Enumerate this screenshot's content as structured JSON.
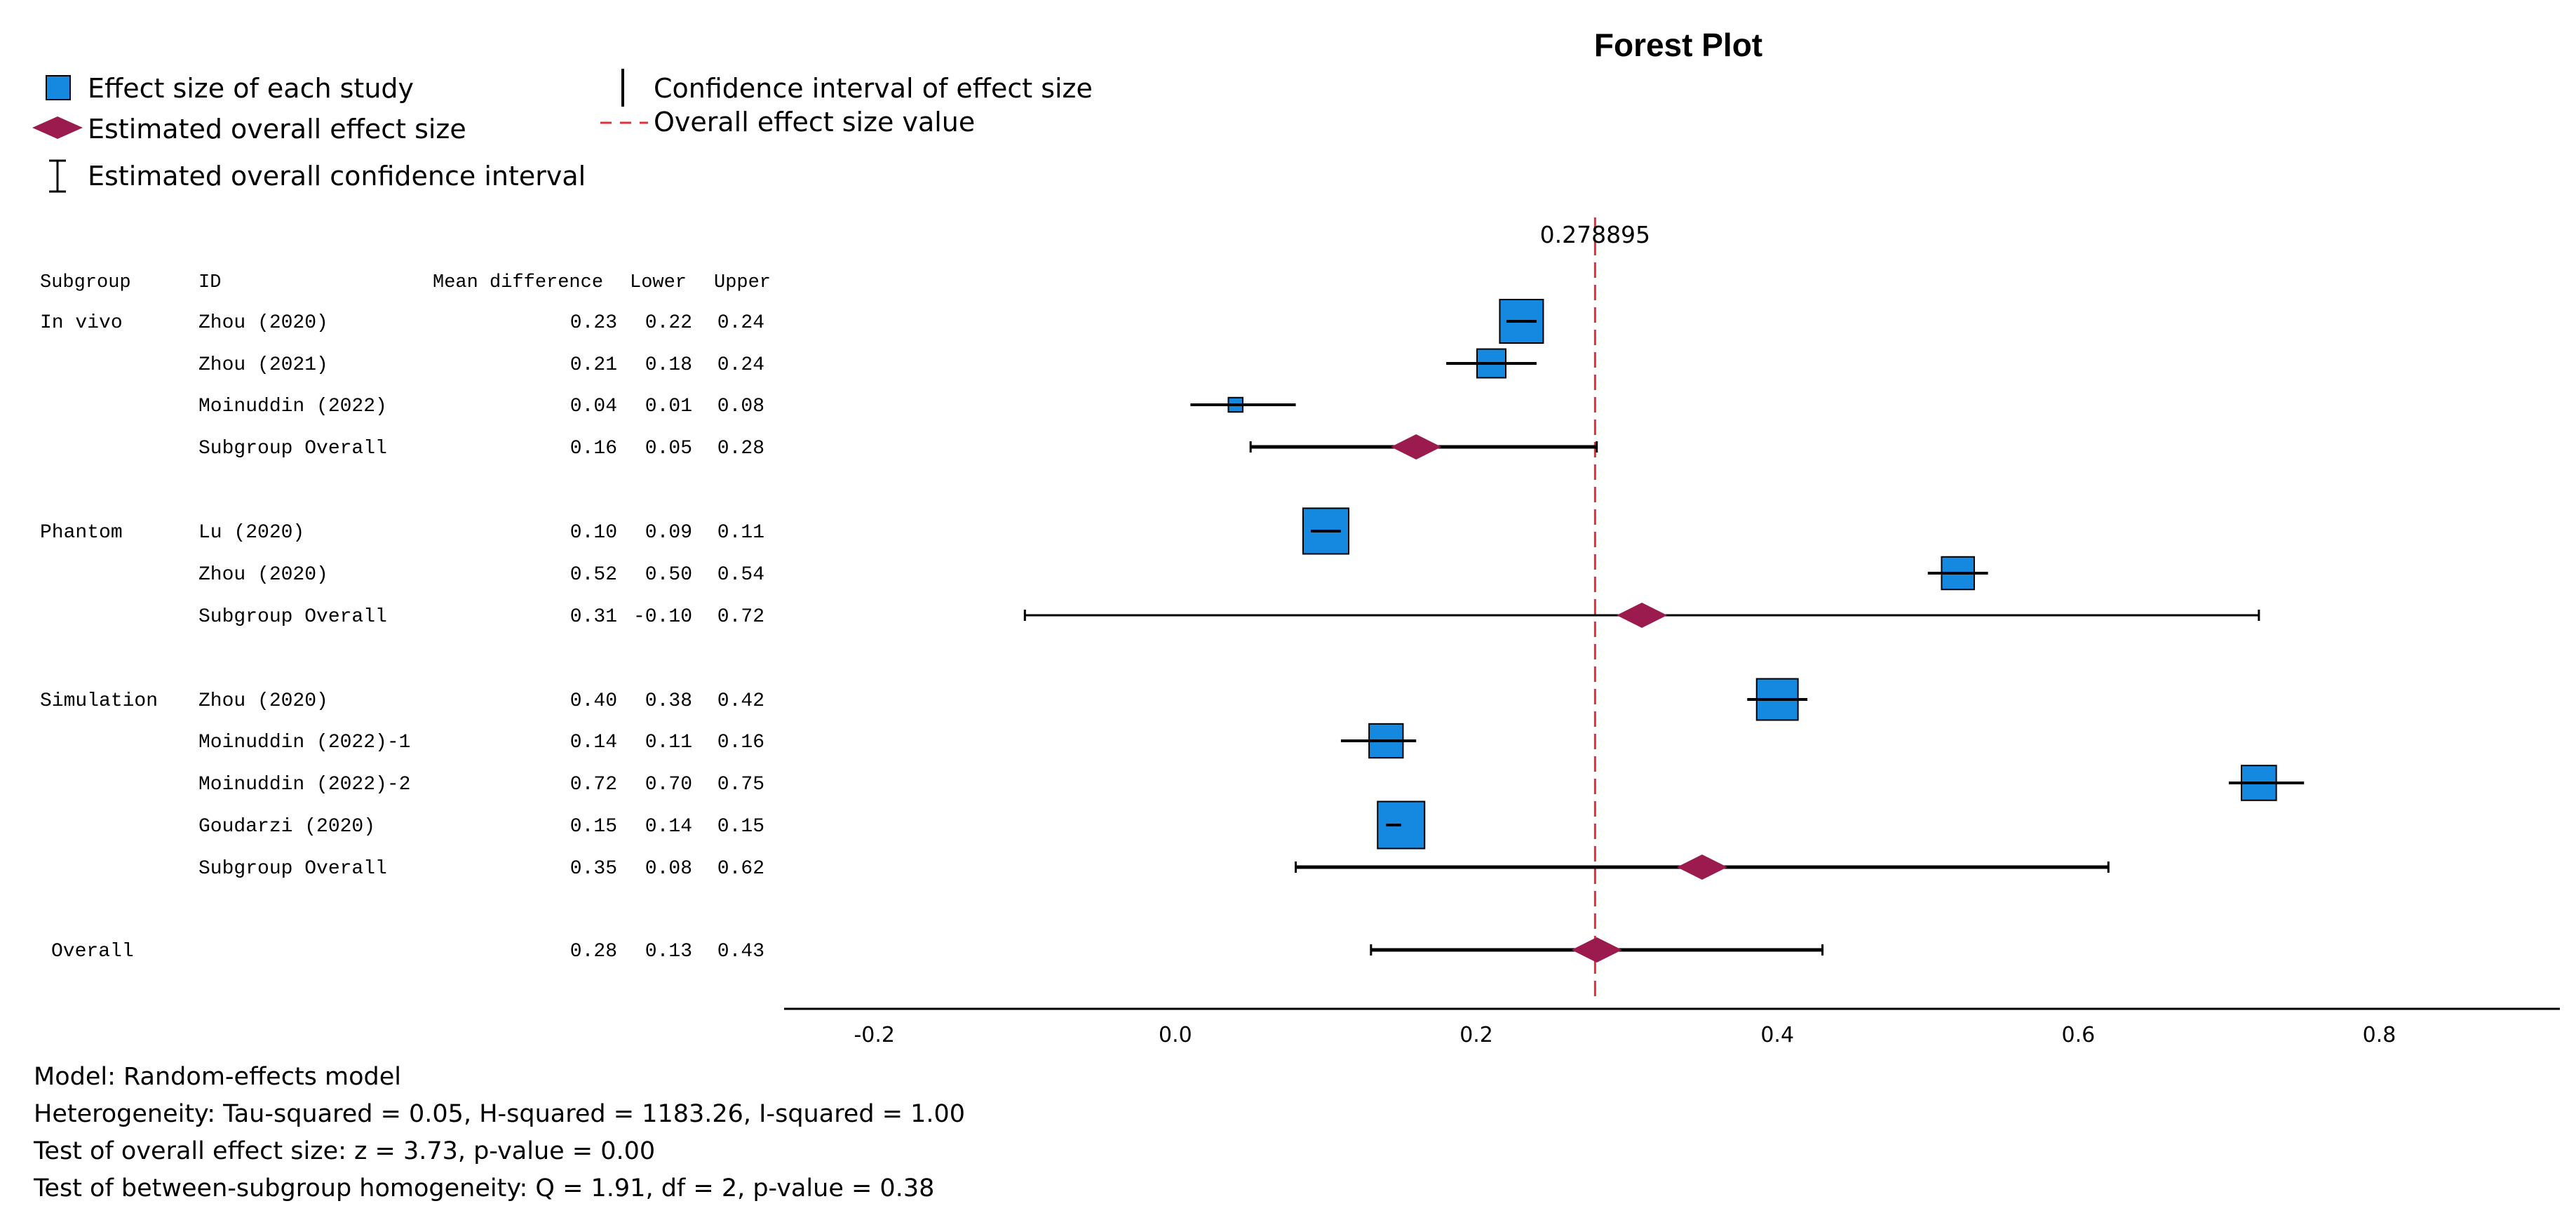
{
  "chart_data": {
    "type": "forest",
    "title": "Forest Plot",
    "legend": [
      {
        "key": "study_box",
        "label": "Effect size of each study"
      },
      {
        "key": "overall_diamond",
        "label": "Estimated overall effect size"
      },
      {
        "key": "overall_ci",
        "label": "Estimated overall confidence interval"
      },
      {
        "key": "study_ci",
        "label": "Confidence interval of effect size"
      },
      {
        "key": "ref_line",
        "label": "Overall effect size value"
      }
    ],
    "columns": [
      "Subgroup",
      "ID",
      "Mean difference",
      "Lower",
      "Upper"
    ],
    "overall_value": 0.278895,
    "overall_value_label": "0.278895",
    "xlim": [
      -0.26,
      0.92
    ],
    "xticks": [
      -0.2,
      0.0,
      0.2,
      0.4,
      0.6,
      0.8
    ],
    "xtick_labels": [
      "-0.2",
      "0.0",
      "0.2",
      "0.4",
      "0.6",
      "0.8"
    ],
    "rows": [
      {
        "subgroup": "In vivo",
        "id": "Zhou (2020)",
        "type": "study",
        "md": 0.23,
        "lower": 0.22,
        "upper": 0.24,
        "md_text": "0.23",
        "lower_text": "0.22",
        "upper_text": "0.24",
        "weight": 1.0
      },
      {
        "subgroup": "",
        "id": "Zhou (2021)",
        "type": "study",
        "md": 0.21,
        "lower": 0.18,
        "upper": 0.24,
        "md_text": "0.21",
        "lower_text": "0.18",
        "upper_text": "0.24",
        "weight": 0.66
      },
      {
        "subgroup": "",
        "id": "Moinuddin (2022)",
        "type": "study",
        "md": 0.04,
        "lower": 0.01,
        "upper": 0.08,
        "md_text": "0.04",
        "lower_text": "0.01",
        "upper_text": "0.08",
        "weight": 0.33
      },
      {
        "subgroup": "",
        "id": "Subgroup Overall",
        "type": "subgroup",
        "md": 0.16,
        "lower": 0.05,
        "upper": 0.28,
        "md_text": "0.16",
        "lower_text": "0.05",
        "upper_text": "0.28"
      },
      {
        "subgroup": "Phantom",
        "id": "Lu (2020)",
        "type": "study",
        "md": 0.1,
        "lower": 0.09,
        "upper": 0.11,
        "md_text": "0.10",
        "lower_text": "0.09",
        "upper_text": "0.11",
        "weight": 1.05
      },
      {
        "subgroup": "",
        "id": "Zhou (2020)",
        "type": "study",
        "md": 0.52,
        "lower": 0.5,
        "upper": 0.54,
        "md_text": "0.52",
        "lower_text": "0.50",
        "upper_text": "0.54",
        "weight": 0.75
      },
      {
        "subgroup": "",
        "id": "Subgroup Overall",
        "type": "subgroup",
        "md": 0.31,
        "lower": -0.1,
        "upper": 0.72,
        "md_text": "0.31",
        "lower_text": "-0.10",
        "upper_text": "0.72"
      },
      {
        "subgroup": "Simulation",
        "id": "Zhou (2020)",
        "type": "study",
        "md": 0.4,
        "lower": 0.38,
        "upper": 0.42,
        "md_text": "0.40",
        "lower_text": "0.38",
        "upper_text": "0.42",
        "weight": 0.95
      },
      {
        "subgroup": "",
        "id": "Moinuddin (2022)-1",
        "type": "study",
        "md": 0.14,
        "lower": 0.11,
        "upper": 0.16,
        "md_text": "0.14",
        "lower_text": "0.11",
        "upper_text": "0.16",
        "weight": 0.78
      },
      {
        "subgroup": "",
        "id": "Moinuddin (2022)-2",
        "type": "study",
        "md": 0.72,
        "lower": 0.7,
        "upper": 0.75,
        "md_text": "0.72",
        "lower_text": "0.70",
        "upper_text": "0.75",
        "weight": 0.8
      },
      {
        "subgroup": "",
        "id": "Goudarzi (2020)",
        "type": "study",
        "md": 0.15,
        "lower": 0.14,
        "upper": 0.15,
        "md_text": "0.15",
        "lower_text": "0.14",
        "upper_text": "0.15",
        "weight": 1.08
      },
      {
        "subgroup": "",
        "id": "Subgroup Overall",
        "type": "subgroup",
        "md": 0.35,
        "lower": 0.08,
        "upper": 0.62,
        "md_text": "0.35",
        "lower_text": "0.08",
        "upper_text": "0.62"
      },
      {
        "subgroup": "Overall",
        "id": "",
        "type": "overall",
        "md": 0.28,
        "lower": 0.13,
        "upper": 0.43,
        "md_text": "0.28",
        "lower_text": "0.13",
        "upper_text": "0.43"
      }
    ],
    "footer": [
      "Model: Random-effects model",
      "Heterogeneity: Tau-squared = 0.05, H-squared = 1183.26, I-squared = 1.00",
      "Test of overall effect size: z = 3.73, p-value = 0.00",
      "Test of between-subgroup homogeneity: Q = 1.91, df = 2, p-value = 0.38"
    ],
    "colors": {
      "study_box": "#1589e0",
      "diamond": "#9b1b4f",
      "ref_line": "#e0303a",
      "ink": "#000000"
    }
  }
}
